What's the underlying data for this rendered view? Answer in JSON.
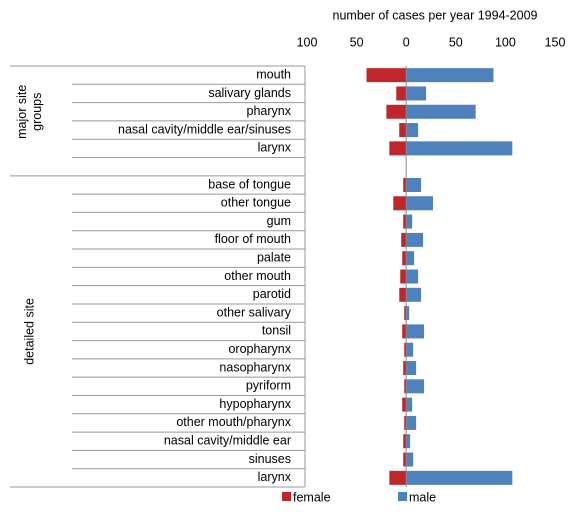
{
  "chart_data": {
    "type": "butterfly-bar",
    "title": "number of cases per year 1994-2009",
    "categories": [
      "mouth",
      "salivary glands",
      "pharynx",
      "nasal cavity/middle ear/sinuses",
      "larynx",
      null,
      "base of tongue",
      "other tongue",
      "gum",
      "floor of mouth",
      "palate",
      "other mouth",
      "parotid",
      "other salivary",
      "tonsil",
      "oropharynx",
      "nasopharynx",
      "pyriform",
      "hypopharynx",
      "other mouth/pharynx",
      "nasal cavity/middle ear",
      "sinuses",
      "larynx"
    ],
    "group_labels": [
      [
        "major site",
        "groups"
      ],
      [
        "detailed site"
      ]
    ],
    "series": [
      {
        "name": "female",
        "color": "#c0272d",
        "values": [
          -40,
          -10,
          -20,
          -7,
          -17,
          null,
          -3,
          -13,
          -3,
          -5,
          -4,
          -6,
          -7,
          -2,
          -4,
          -2,
          -3,
          -2,
          -4,
          -2,
          -3,
          -3,
          -17
        ]
      },
      {
        "name": "male",
        "color": "#4f81bd",
        "values": [
          88,
          20,
          70,
          12,
          107,
          null,
          15,
          27,
          6,
          17,
          8,
          12,
          15,
          3,
          18,
          7,
          10,
          18,
          6,
          10,
          4,
          7,
          107
        ]
      }
    ],
    "xlim": [
      -100,
      150
    ],
    "xticks": [
      {
        "value": -100,
        "label": "100"
      },
      {
        "value": -50,
        "label": "50"
      },
      0,
      50,
      100,
      150
    ],
    "grid": false,
    "legend": "bottom"
  }
}
